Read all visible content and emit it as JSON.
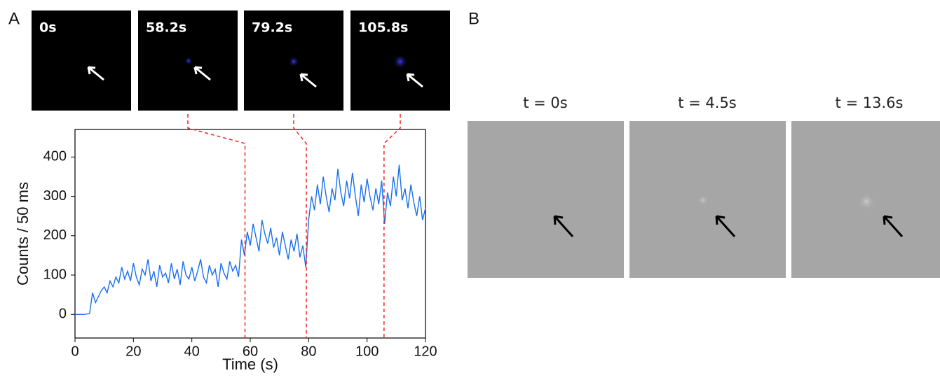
{
  "panel_labels": [
    "A",
    "B"
  ],
  "chart_data": {
    "type": "line",
    "xlabel": "Time (s)",
    "ylabel": "Counts / 50 ms",
    "xlim": [
      0,
      120
    ],
    "ylim": [
      -60,
      470
    ],
    "xticks": [
      0,
      20,
      40,
      60,
      80,
      100,
      120
    ],
    "yticks": [
      0,
      100,
      200,
      300,
      400
    ],
    "frames": [
      "0s",
      "58.2s",
      "79.2s",
      "105.8s"
    ],
    "event_times": [
      58.2,
      79.2,
      105.8
    ],
    "event_color": "#ee2222",
    "x": [
      0,
      1,
      2,
      3,
      4,
      5,
      6,
      7,
      8,
      9,
      10,
      11,
      12,
      13,
      14,
      15,
      16,
      17,
      18,
      19,
      20,
      21,
      22,
      23,
      24,
      25,
      26,
      27,
      28,
      29,
      30,
      31,
      32,
      33,
      34,
      35,
      36,
      37,
      38,
      39,
      40,
      41,
      42,
      43,
      44,
      45,
      46,
      47,
      48,
      49,
      50,
      51,
      52,
      53,
      54,
      55,
      56,
      57,
      58,
      59,
      60,
      61,
      62,
      63,
      64,
      65,
      66,
      67,
      68,
      69,
      70,
      71,
      72,
      73,
      74,
      75,
      76,
      77,
      78,
      79,
      80,
      81,
      82,
      83,
      84,
      85,
      86,
      87,
      88,
      89,
      90,
      91,
      92,
      93,
      94,
      95,
      96,
      97,
      98,
      99,
      100,
      101,
      102,
      103,
      104,
      105,
      106,
      107,
      108,
      109,
      110,
      111,
      112,
      113,
      114,
      115,
      116,
      117,
      118,
      119,
      120
    ],
    "series": [
      {
        "color": "#1a6ff0",
        "values": [
          0,
          0,
          0,
          0,
          1,
          2,
          55,
          30,
          45,
          60,
          70,
          55,
          85,
          70,
          95,
          80,
          120,
          90,
          110,
          85,
          130,
          95,
          75,
          115,
          100,
          140,
          85,
          110,
          70,
          125,
          95,
          105,
          80,
          130,
          90,
          115,
          75,
          135,
          100,
          90,
          120,
          85,
          110,
          140,
          95,
          80,
          125,
          100,
          115,
          70,
          130,
          105,
          90,
          135,
          110,
          125,
          95,
          190,
          150,
          210,
          175,
          230,
          195,
          160,
          240,
          205,
          180,
          220,
          170,
          195,
          150,
          210,
          175,
          140,
          190,
          160,
          205,
          145,
          175,
          120,
          240,
          300,
          265,
          330,
          280,
          350,
          300,
          260,
          320,
          290,
          370,
          310,
          275,
          340,
          295,
          360,
          300,
          250,
          330,
          285,
          345,
          300,
          265,
          320,
          280,
          340,
          230,
          310,
          275,
          350,
          300,
          380,
          290,
          320,
          270,
          330,
          285,
          250,
          300,
          240,
          270
        ]
      }
    ]
  },
  "panel_b": {
    "frames": [
      "t = 0s",
      "t = 4.5s",
      "t = 13.6s"
    ]
  }
}
